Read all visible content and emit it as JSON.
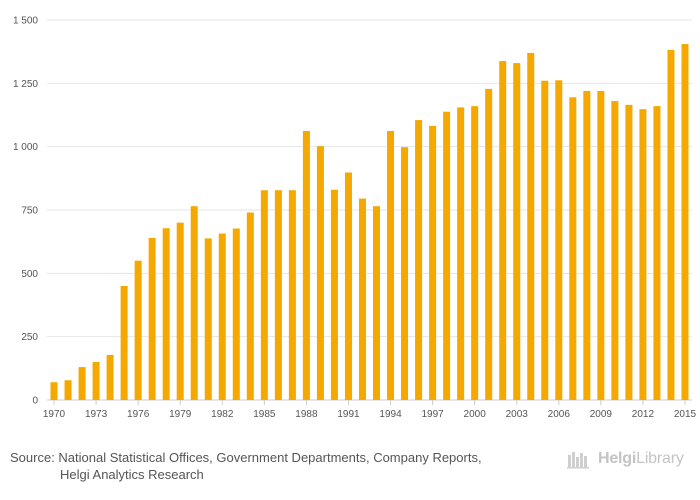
{
  "chart_data": {
    "type": "bar",
    "title": "",
    "xlabel": "",
    "ylabel": "",
    "ylim": [
      0,
      1500
    ],
    "yticks": [
      0,
      250,
      500,
      750,
      1000,
      1250,
      1500
    ],
    "ytick_labels": [
      "0",
      "250",
      "500",
      "750",
      "1 000",
      "1 250",
      "1 500"
    ],
    "color": "#f5a800",
    "categories": [
      "1970",
      "1971",
      "1972",
      "1973",
      "1974",
      "1975",
      "1976",
      "1977",
      "1978",
      "1979",
      "1980",
      "1981",
      "1982",
      "1983",
      "1984",
      "1985",
      "1986",
      "1987",
      "1988",
      "1989",
      "1990",
      "1991",
      "1992",
      "1993",
      "1994",
      "1995",
      "1996",
      "1997",
      "1998",
      "1999",
      "2000",
      "2001",
      "2002",
      "2003",
      "2004",
      "2005",
      "2006",
      "2007",
      "2008",
      "2009",
      "2010",
      "2011",
      "2012",
      "2013",
      "2014",
      "2015"
    ],
    "values": [
      70,
      78,
      130,
      150,
      178,
      450,
      550,
      640,
      678,
      700,
      765,
      638,
      657,
      677,
      740,
      828,
      828,
      828,
      1062,
      1002,
      830,
      898,
      795,
      765,
      1062,
      998,
      1105,
      1082,
      1138,
      1155,
      1160,
      1228,
      1338,
      1330,
      1370,
      1260,
      1262,
      1195,
      1220,
      1220,
      1180,
      1165,
      1148,
      1160,
      1382,
      1405
    ],
    "xtick_labels": [
      "1970",
      "1973",
      "1976",
      "1979",
      "1982",
      "1985",
      "1988",
      "1991",
      "1994",
      "1997",
      "2000",
      "2003",
      "2006",
      "2009",
      "2012",
      "2015"
    ]
  },
  "footer": {
    "source_line1": "Source: National Statistical Offices, Government Departments, Company Reports,",
    "source_line2": "Helgi Analytics Research",
    "logo_part1": "Helgi",
    "logo_part2": "Library"
  }
}
